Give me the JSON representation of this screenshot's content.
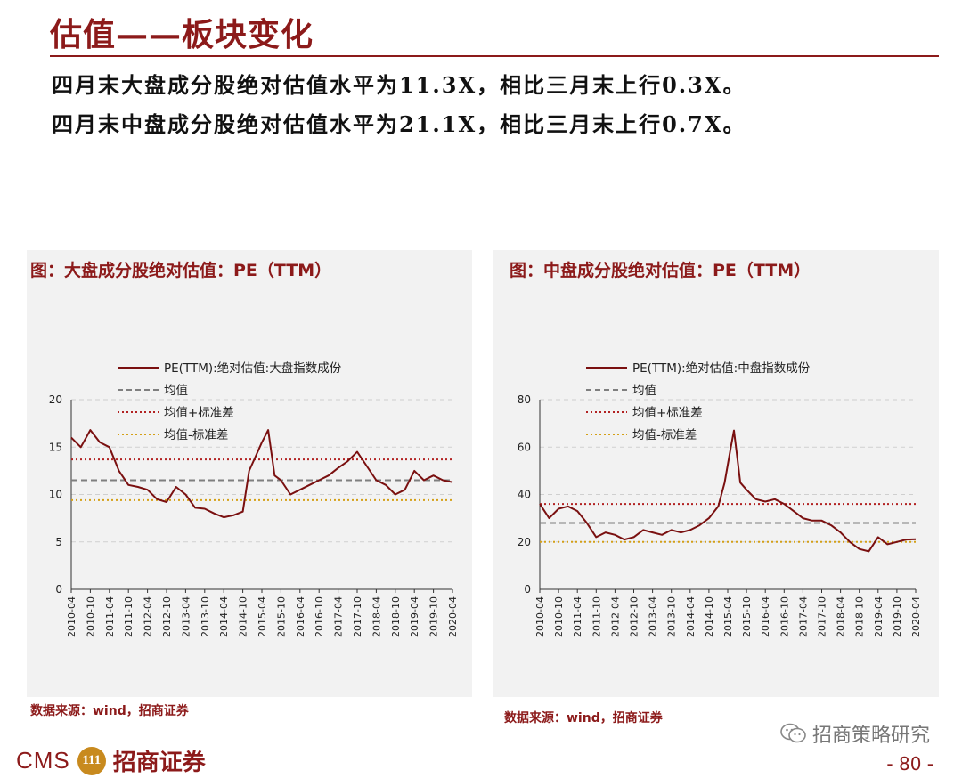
{
  "header": {
    "title": "估值——板块变化",
    "line1": "四月末大盘成分股绝对估值水平为11.3X，相比三月末上行0.3X。",
    "line2": "四月末中盘成分股绝对估值水平为21.1X，相比三月末上行0.7X。"
  },
  "footer": {
    "cms": "CMS",
    "logo_mark": "111",
    "brand": "招商证券",
    "wechat": "招商策略研究",
    "page": "- 80 -"
  },
  "colors": {
    "brand": "#8c1a1a",
    "series": "#7a1010",
    "mean": "#7f7f7f",
    "plus_std": "#b22222",
    "minus_std": "#d4a017"
  },
  "chart_data": [
    {
      "type": "line",
      "title": "图：大盘成分股绝对估值：PE（TTM）",
      "source": "数据来源：wind，招商证券",
      "ylim": [
        0,
        20
      ],
      "yticks": [
        0,
        5,
        10,
        15,
        20
      ],
      "x_start": "2010-04",
      "x_end": "2020-04",
      "xticks": [
        "2010-04",
        "2010-10",
        "2011-04",
        "2011-10",
        "2012-04",
        "2012-10",
        "2013-04",
        "2013-10",
        "2014-04",
        "2014-10",
        "2015-04",
        "2015-10",
        "2016-04",
        "2016-10",
        "2017-04",
        "2017-10",
        "2018-04",
        "2018-10",
        "2019-04",
        "2019-10",
        "2020-04"
      ],
      "grid": true,
      "legend": [
        "PE(TTM):绝对估值:大盘指数成份",
        "均值",
        "均值+标准差",
        "均值-标准差"
      ],
      "reference_lines": {
        "mean": 11.5,
        "plus_std": 13.7,
        "minus_std": 9.4
      },
      "series": [
        {
          "name": "PE(TTM):绝对估值:大盘指数成份",
          "x": [
            "2010-04",
            "2010-07",
            "2010-10",
            "2011-01",
            "2011-04",
            "2011-07",
            "2011-10",
            "2012-01",
            "2012-04",
            "2012-07",
            "2012-10",
            "2013-01",
            "2013-04",
            "2013-07",
            "2013-10",
            "2014-01",
            "2014-04",
            "2014-07",
            "2014-10",
            "2014-12",
            "2015-02",
            "2015-04",
            "2015-06",
            "2015-08",
            "2015-10",
            "2016-01",
            "2016-04",
            "2016-07",
            "2016-10",
            "2017-01",
            "2017-04",
            "2017-07",
            "2017-10",
            "2018-01",
            "2018-04",
            "2018-07",
            "2018-10",
            "2019-01",
            "2019-04",
            "2019-07",
            "2019-10",
            "2020-01",
            "2020-04"
          ],
          "values": [
            16,
            15,
            16.8,
            15.5,
            15,
            12.5,
            11,
            10.8,
            10.5,
            9.5,
            9.2,
            10.8,
            10,
            8.6,
            8.5,
            8,
            7.6,
            7.8,
            8.2,
            12.5,
            14,
            15.5,
            16.8,
            12,
            11.5,
            10,
            10.5,
            11,
            11.5,
            12,
            12.8,
            13.5,
            14.5,
            13,
            11.5,
            11,
            10,
            10.5,
            12.5,
            11.5,
            12,
            11.5,
            11.3
          ]
        }
      ]
    },
    {
      "type": "line",
      "title": "图：中盘成分股绝对估值：PE（TTM）",
      "source": "数据来源：wind，招商证券",
      "ylim": [
        0,
        80
      ],
      "yticks": [
        0,
        20,
        40,
        60,
        80
      ],
      "x_start": "2010-04",
      "x_end": "2020-04",
      "xticks": [
        "2010-04",
        "2010-10",
        "2011-04",
        "2011-10",
        "2012-04",
        "2012-10",
        "2013-04",
        "2013-10",
        "2014-04",
        "2014-10",
        "2015-04",
        "2015-10",
        "2016-04",
        "2016-10",
        "2017-04",
        "2017-10",
        "2018-04",
        "2018-10",
        "2019-04",
        "2019-10",
        "2020-04"
      ],
      "grid": true,
      "legend": [
        "PE(TTM):绝对估值:中盘指数成份",
        "均值",
        "均值+标准差",
        "均值-标准差"
      ],
      "reference_lines": {
        "mean": 28,
        "plus_std": 36,
        "minus_std": 20
      },
      "series": [
        {
          "name": "PE(TTM):绝对估值:中盘指数成份",
          "x": [
            "2010-04",
            "2010-07",
            "2010-10",
            "2011-01",
            "2011-04",
            "2011-07",
            "2011-10",
            "2012-01",
            "2012-04",
            "2012-07",
            "2012-10",
            "2013-01",
            "2013-04",
            "2013-07",
            "2013-10",
            "2014-01",
            "2014-04",
            "2014-07",
            "2014-10",
            "2015-01",
            "2015-03",
            "2015-05",
            "2015-06",
            "2015-08",
            "2015-10",
            "2016-01",
            "2016-04",
            "2016-07",
            "2016-10",
            "2017-01",
            "2017-04",
            "2017-07",
            "2017-10",
            "2018-01",
            "2018-04",
            "2018-07",
            "2018-10",
            "2019-01",
            "2019-04",
            "2019-07",
            "2019-10",
            "2020-01",
            "2020-04"
          ],
          "values": [
            36,
            30,
            34,
            35,
            33,
            28,
            22,
            24,
            23,
            21,
            22,
            25,
            24,
            23,
            25,
            24,
            25,
            27,
            30,
            35,
            45,
            60,
            67,
            45,
            42,
            38,
            37,
            38,
            36,
            33,
            30,
            29,
            29,
            27,
            24,
            20,
            17,
            16,
            22,
            19,
            20,
            21,
            21.1
          ]
        }
      ]
    }
  ]
}
